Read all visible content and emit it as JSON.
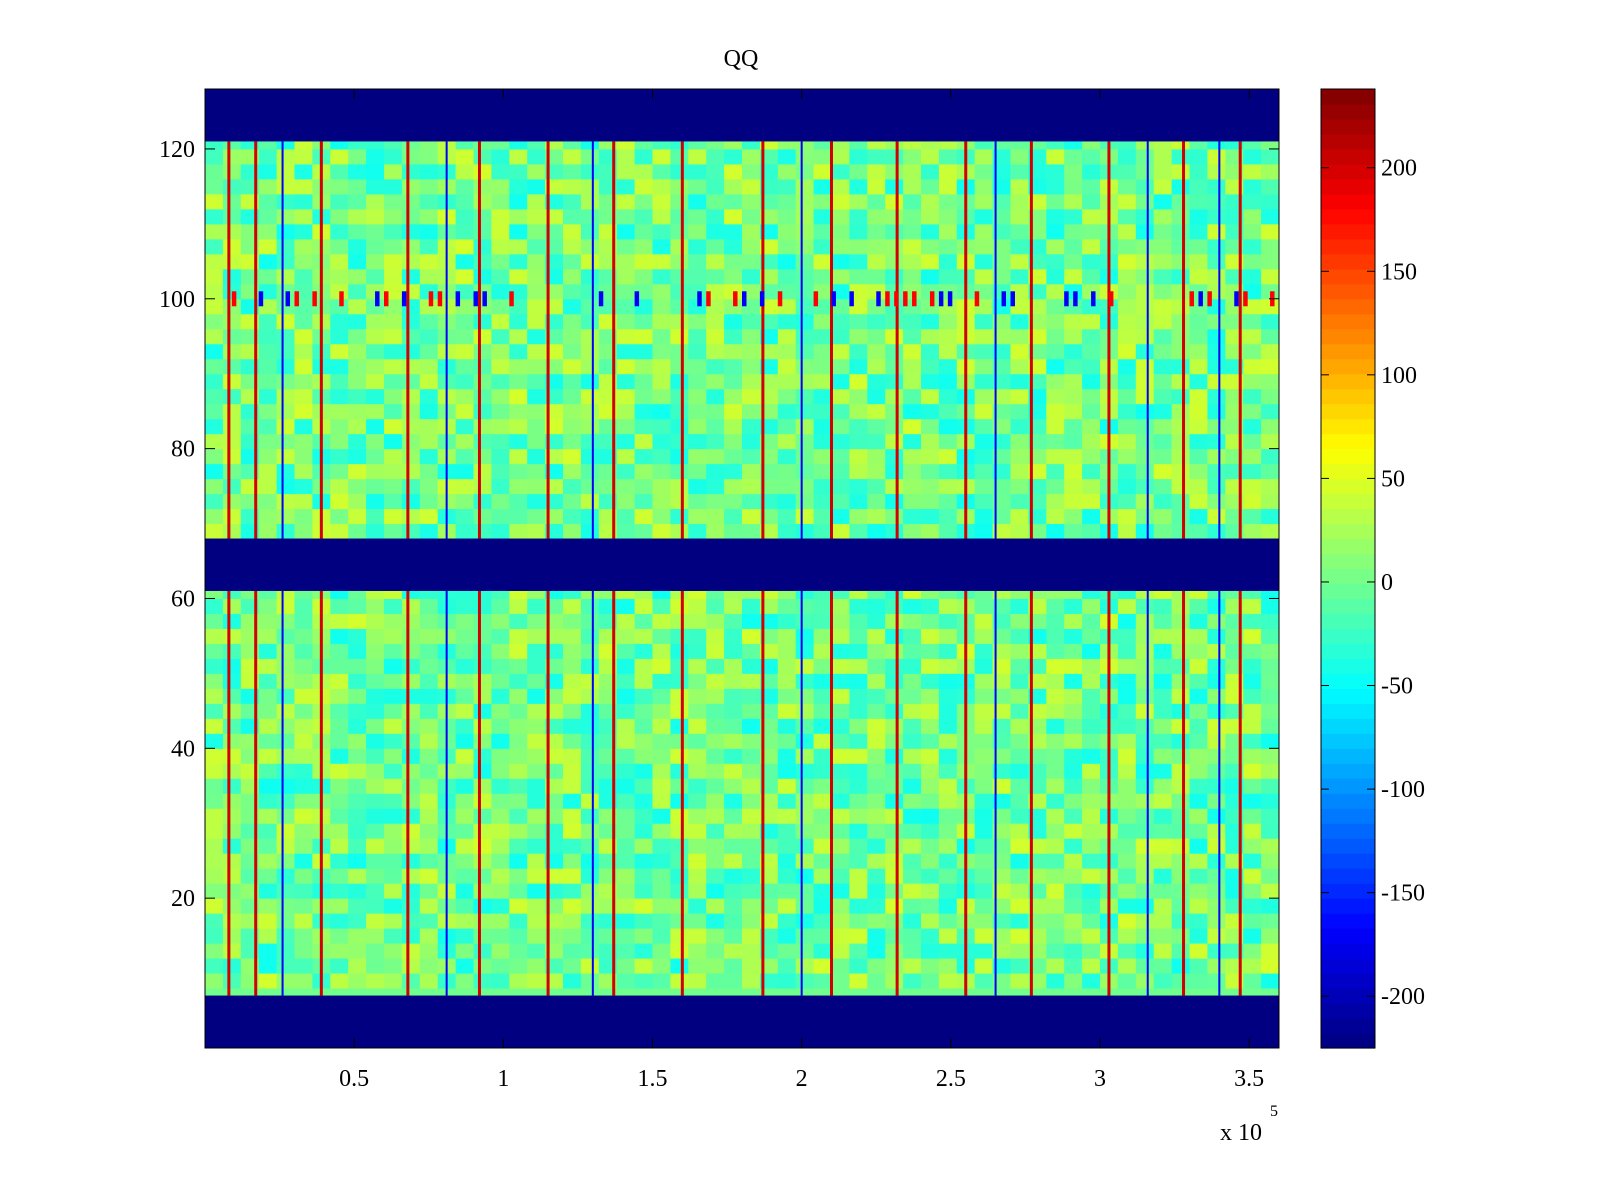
{
  "chart_data": {
    "type": "heatmap",
    "title": "QQ",
    "xlabel": "",
    "ylabel": "",
    "x_exponent_label": "x 10",
    "x_exponent_power": "5",
    "xlim": [
      0,
      360000
    ],
    "ylim": [
      0,
      128
    ],
    "x_ticks": [
      0.5,
      1,
      1.5,
      2,
      2.5,
      3,
      3.5
    ],
    "x_tick_labels": [
      "0.5",
      "1",
      "1.5",
      "2",
      "2.5",
      "3",
      "3.5"
    ],
    "y_ticks": [
      20,
      40,
      60,
      80,
      100,
      120
    ],
    "y_tick_labels": [
      "20",
      "40",
      "60",
      "80",
      "100",
      "120"
    ],
    "colormap": "jet",
    "clim": [
      -225,
      238
    ],
    "colorbar_ticks": [
      -200,
      -150,
      -100,
      -50,
      0,
      50,
      100,
      150,
      200
    ],
    "colorbar_tick_labels": [
      "-200",
      "-150",
      "-100",
      "-50",
      "0",
      "50",
      "100",
      "150",
      "200"
    ],
    "background_value": 0,
    "masked_row_bands": [
      {
        "y_from": 0,
        "y_to": 7,
        "value": -225
      },
      {
        "y_from": 61,
        "y_to": 68,
        "value": -225
      },
      {
        "y_from": 121,
        "y_to": 128,
        "value": -225
      }
    ],
    "high_value_columns_x": [
      8000,
      17000,
      39000,
      68000,
      92000,
      115000,
      137000,
      160000,
      187000,
      210000,
      232000,
      255000,
      277000,
      303000,
      328000,
      347000
    ],
    "low_value_columns_x": [
      26000,
      81000,
      130000,
      200000,
      265000,
      316000,
      340000
    ],
    "anomaly_row_y": 100,
    "grid": false,
    "legend": "none"
  }
}
